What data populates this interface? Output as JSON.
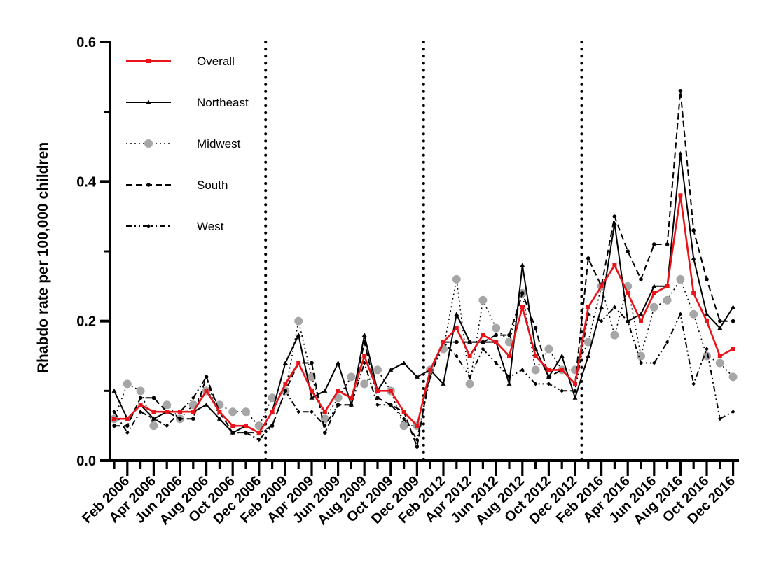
{
  "chart_data": {
    "type": "line",
    "ylabel": "Rhabdo rate per 100,000 children",
    "xlabel": "",
    "ylim": [
      0,
      0.6
    ],
    "yticks": [
      "0.0",
      "0.2",
      "0.4",
      "0.6"
    ],
    "ytick_values": [
      0,
      0.2,
      0.4,
      0.6
    ],
    "x_labels": [
      "Feb 2006",
      "Apr 2006",
      "Jun 2006",
      "Aug 2006",
      "Oct 2006",
      "Dec 2006",
      "Feb 2009",
      "Apr 2009",
      "Jun 2009",
      "Aug 2009",
      "Oct 2009",
      "Dec 2009",
      "Feb 2012",
      "Apr 2012",
      "Jun 2012",
      "Aug 2012",
      "Oct 2012",
      "Dec 2012",
      "Feb 2016",
      "Apr 2016",
      "Jun 2016",
      "Aug 2016",
      "Oct 2016",
      "Dec 2016"
    ],
    "periods": [
      "2006",
      "2009",
      "2012",
      "2016"
    ],
    "period_dividers": [
      11.5,
      23.5,
      35.5
    ],
    "grid": false,
    "legend_position": "top-left",
    "series": [
      {
        "name": "Overall",
        "color": "#e8141a",
        "style": "solid",
        "marker": "square",
        "values": [
          0.06,
          0.06,
          0.08,
          0.07,
          0.07,
          0.07,
          0.07,
          0.1,
          0.07,
          0.05,
          0.05,
          0.04,
          0.07,
          0.11,
          0.14,
          0.1,
          0.07,
          0.1,
          0.09,
          0.15,
          0.1,
          0.1,
          0.07,
          0.05,
          0.13,
          0.17,
          0.19,
          0.15,
          0.18,
          0.17,
          0.15,
          0.22,
          0.15,
          0.13,
          0.13,
          0.11,
          0.22,
          0.25,
          0.28,
          0.24,
          0.2,
          0.24,
          0.25,
          0.38,
          0.24,
          0.2,
          0.15,
          0.16
        ]
      },
      {
        "name": "Northeast",
        "color": "#000000",
        "style": "solid",
        "marker": "triangle",
        "values": [
          0.1,
          0.06,
          0.08,
          0.06,
          0.07,
          0.07,
          0.07,
          0.08,
          0.06,
          0.04,
          0.05,
          0.04,
          0.07,
          0.14,
          0.18,
          0.09,
          0.1,
          0.14,
          0.08,
          0.18,
          0.1,
          0.13,
          0.14,
          0.12,
          0.13,
          0.11,
          0.21,
          0.17,
          0.17,
          0.17,
          0.11,
          0.28,
          0.16,
          0.12,
          0.15,
          0.09,
          0.15,
          0.22,
          0.34,
          0.2,
          0.21,
          0.25,
          0.25,
          0.44,
          0.29,
          0.21,
          0.19,
          0.22
        ]
      },
      {
        "name": "Midwest",
        "color": "#a6a6a6",
        "style": "dotted",
        "marker": "circle",
        "values": [
          0.06,
          0.11,
          0.1,
          0.05,
          0.08,
          0.06,
          0.08,
          0.1,
          0.08,
          0.07,
          0.07,
          0.05,
          0.09,
          0.1,
          0.2,
          0.12,
          0.06,
          0.09,
          0.12,
          0.11,
          0.13,
          0.1,
          0.05,
          0.05,
          0.13,
          0.16,
          0.26,
          0.11,
          0.23,
          0.19,
          0.17,
          0.24,
          0.13,
          0.16,
          0.13,
          0.13,
          0.17,
          0.25,
          0.18,
          0.25,
          0.15,
          0.22,
          0.23,
          0.26,
          0.21,
          0.15,
          0.14,
          0.12
        ]
      },
      {
        "name": "South",
        "color": "#000000",
        "style": "dashed",
        "marker": "dot",
        "values": [
          0.05,
          0.05,
          0.09,
          0.09,
          0.07,
          0.06,
          0.06,
          0.12,
          0.07,
          0.04,
          0.04,
          0.04,
          0.05,
          0.1,
          0.14,
          0.14,
          0.04,
          0.08,
          0.08,
          0.17,
          0.09,
          0.08,
          0.07,
          0.02,
          0.13,
          0.17,
          0.17,
          0.17,
          0.17,
          0.18,
          0.18,
          0.24,
          0.19,
          0.12,
          0.13,
          0.11,
          0.29,
          0.25,
          0.35,
          0.3,
          0.26,
          0.31,
          0.31,
          0.53,
          0.33,
          0.26,
          0.2,
          0.2
        ]
      },
      {
        "name": "West",
        "color": "#000000",
        "style": "dashdot",
        "marker": "diamond",
        "values": [
          0.07,
          0.04,
          0.07,
          0.06,
          0.05,
          0.07,
          0.09,
          0.12,
          0.06,
          0.04,
          0.04,
          0.03,
          0.05,
          0.1,
          0.07,
          0.07,
          0.05,
          0.08,
          0.08,
          0.14,
          0.08,
          0.08,
          0.06,
          0.03,
          0.12,
          0.17,
          0.15,
          0.12,
          0.16,
          0.14,
          0.12,
          0.13,
          0.11,
          0.11,
          0.1,
          0.1,
          0.21,
          0.2,
          0.22,
          0.2,
          0.14,
          0.14,
          0.17,
          0.21,
          0.11,
          0.16,
          0.06,
          0.07
        ]
      }
    ]
  }
}
